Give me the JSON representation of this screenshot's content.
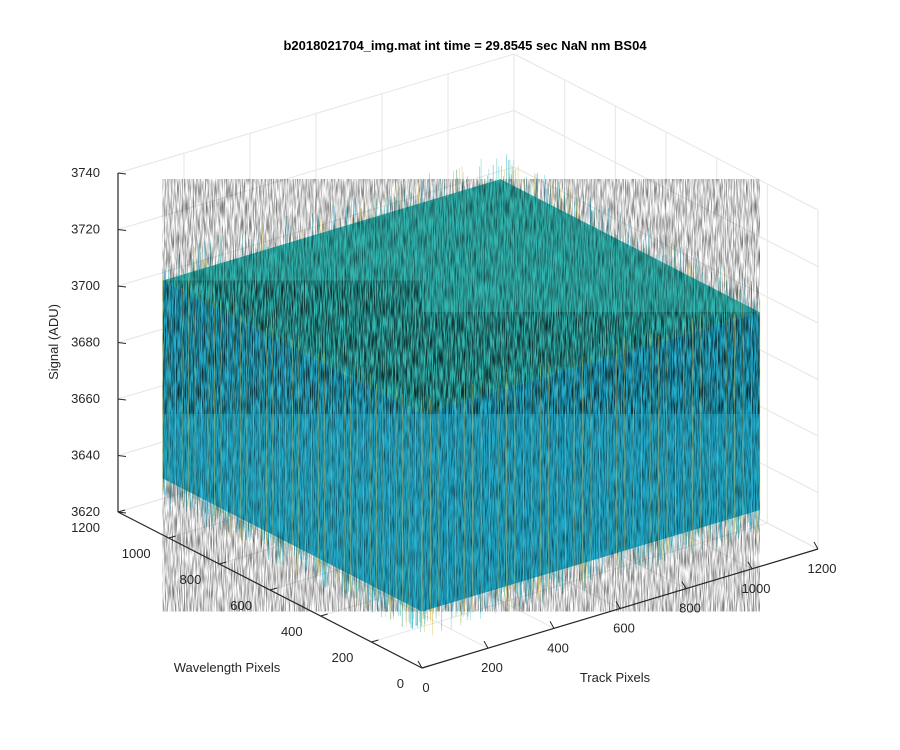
{
  "chart_data": {
    "type": "surface",
    "title": "b2018021704_img.mat int time = 29.8545 sec   NaN nm BS04",
    "xlabel": "Track Pixels",
    "ylabel": "Wavelength Pixels",
    "zlabel": "Signal (ADU)",
    "xlim": [
      0,
      1200
    ],
    "ylim": [
      0,
      1200
    ],
    "zlim": [
      3620,
      3740
    ],
    "xticks": [
      "0",
      "200",
      "400",
      "600",
      "800",
      "1000",
      "1200"
    ],
    "yticks": [
      "0",
      "200",
      "400",
      "600",
      "800",
      "1000",
      "1200"
    ],
    "zticks": [
      "3620",
      "3640",
      "3660",
      "3680",
      "3700",
      "3720",
      "3740"
    ],
    "data_extent": {
      "x": [
        0,
        1024
      ],
      "y": [
        0,
        1024
      ]
    },
    "surface": {
      "mean": 3667,
      "typical_range": [
        3640,
        3710
      ],
      "description_min": 3630,
      "description_max": 3730
    },
    "colormap": "parula",
    "grid": true,
    "view": "3d"
  },
  "colors": {
    "background": "#ffffff",
    "axis": "#262626",
    "grid": "#e6e6e6",
    "surface_low": "#1aa8c8",
    "surface_mid": "#33b7b2",
    "surface_high": "#d9c25a"
  }
}
